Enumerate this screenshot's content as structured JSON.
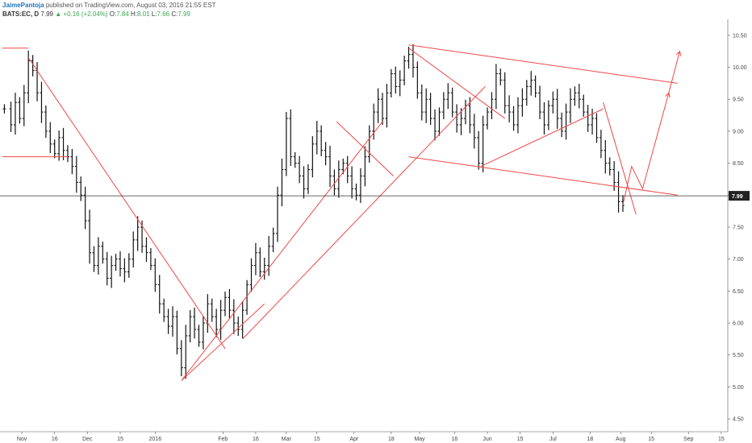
{
  "header": {
    "author": "JaimePantoja",
    "published": "published on TradingView.com, August 03, 2016 21:55 EST",
    "symbol": "BATS:EC, D",
    "last": "7.99",
    "change_arrow": "▲",
    "change": "+0.16 (+2.04%)",
    "open_label": "O:",
    "open": "7.84",
    "high_label": "H:",
    "high": "8.01",
    "low_label": "L:",
    "low": "7.66",
    "close_label": "C:",
    "close": "7.99"
  },
  "chart_data": {
    "type": "ohlc",
    "price_ticks": [
      "10.50",
      "10.00",
      "9.50",
      "9.00",
      "8.50",
      "8.00",
      "7.50",
      "7.00",
      "6.50",
      "6.00",
      "5.50",
      "5.00",
      "4.50"
    ],
    "price_tick_values": [
      10.5,
      10.0,
      9.5,
      9.0,
      8.5,
      8.0,
      7.5,
      7.0,
      6.5,
      6.0,
      5.5,
      5.0,
      4.5
    ],
    "ylim": [
      4.3,
      10.75
    ],
    "time_labels": [
      "Nov",
      "16",
      "Dec",
      "15",
      "2016",
      "Feb",
      "16",
      "Mar",
      "15",
      "Apr",
      "18",
      "May",
      "16",
      "Jun",
      "15",
      "Jul",
      "18",
      "Aug",
      "15",
      "Sep",
      "15"
    ],
    "time_label_days": [
      0,
      15,
      30,
      45,
      61,
      92,
      107,
      121,
      135,
      152,
      169,
      182,
      198,
      213,
      228,
      243,
      260,
      274,
      288,
      305,
      320
    ],
    "xlim": [
      -10,
      323
    ],
    "last_price_label": "7.99",
    "last_price": 7.99,
    "closes": [
      {
        "d": -8,
        "c": 9.35
      },
      {
        "d": -5,
        "c": 9.1
      },
      {
        "d": -3,
        "c": 9.45
      },
      {
        "d": -1,
        "c": 9.2
      },
      {
        "d": 1,
        "c": 9.6
      },
      {
        "d": 3,
        "c": 10.1
      },
      {
        "d": 5,
        "c": 9.95
      },
      {
        "d": 7,
        "c": 9.6
      },
      {
        "d": 9,
        "c": 9.3
      },
      {
        "d": 11,
        "c": 9.0
      },
      {
        "d": 13,
        "c": 8.8
      },
      {
        "d": 15,
        "c": 8.65
      },
      {
        "d": 17,
        "c": 8.9
      },
      {
        "d": 19,
        "c": 8.7
      },
      {
        "d": 21,
        "c": 8.6
      },
      {
        "d": 23,
        "c": 8.45
      },
      {
        "d": 25,
        "c": 8.2
      },
      {
        "d": 27,
        "c": 8.0
      },
      {
        "d": 29,
        "c": 7.6
      },
      {
        "d": 31,
        "c": 7.1
      },
      {
        "d": 33,
        "c": 6.9
      },
      {
        "d": 35,
        "c": 7.2
      },
      {
        "d": 37,
        "c": 7.0
      },
      {
        "d": 39,
        "c": 6.7
      },
      {
        "d": 41,
        "c": 6.9
      },
      {
        "d": 43,
        "c": 7.0
      },
      {
        "d": 45,
        "c": 6.85
      },
      {
        "d": 47,
        "c": 6.8
      },
      {
        "d": 49,
        "c": 7.0
      },
      {
        "d": 51,
        "c": 7.3
      },
      {
        "d": 53,
        "c": 7.5
      },
      {
        "d": 55,
        "c": 7.2
      },
      {
        "d": 57,
        "c": 7.1
      },
      {
        "d": 59,
        "c": 6.9
      },
      {
        "d": 61,
        "c": 6.6
      },
      {
        "d": 63,
        "c": 6.3
      },
      {
        "d": 65,
        "c": 6.1
      },
      {
        "d": 67,
        "c": 5.95
      },
      {
        "d": 69,
        "c": 6.1
      },
      {
        "d": 71,
        "c": 5.6
      },
      {
        "d": 73,
        "c": 5.3
      },
      {
        "d": 75,
        "c": 5.8
      },
      {
        "d": 77,
        "c": 6.1
      },
      {
        "d": 79,
        "c": 5.9
      },
      {
        "d": 81,
        "c": 5.7
      },
      {
        "d": 83,
        "c": 6.0
      },
      {
        "d": 85,
        "c": 6.3
      },
      {
        "d": 87,
        "c": 6.1
      },
      {
        "d": 89,
        "c": 5.9
      },
      {
        "d": 91,
        "c": 6.2
      },
      {
        "d": 93,
        "c": 6.4
      },
      {
        "d": 95,
        "c": 6.2
      },
      {
        "d": 97,
        "c": 6.0
      },
      {
        "d": 99,
        "c": 5.9
      },
      {
        "d": 101,
        "c": 6.2
      },
      {
        "d": 103,
        "c": 6.6
      },
      {
        "d": 105,
        "c": 6.9
      },
      {
        "d": 107,
        "c": 7.1
      },
      {
        "d": 109,
        "c": 6.8
      },
      {
        "d": 111,
        "c": 6.9
      },
      {
        "d": 113,
        "c": 7.2
      },
      {
        "d": 115,
        "c": 7.4
      },
      {
        "d": 117,
        "c": 8.0
      },
      {
        "d": 119,
        "c": 8.4
      },
      {
        "d": 121,
        "c": 9.2
      },
      {
        "d": 123,
        "c": 8.6
      },
      {
        "d": 125,
        "c": 8.5
      },
      {
        "d": 127,
        "c": 8.3
      },
      {
        "d": 129,
        "c": 8.1
      },
      {
        "d": 131,
        "c": 8.4
      },
      {
        "d": 133,
        "c": 8.8
      },
      {
        "d": 135,
        "c": 9.0
      },
      {
        "d": 137,
        "c": 8.7
      },
      {
        "d": 139,
        "c": 8.6
      },
      {
        "d": 141,
        "c": 8.3
      },
      {
        "d": 143,
        "c": 8.1
      },
      {
        "d": 145,
        "c": 8.4
      },
      {
        "d": 147,
        "c": 8.5
      },
      {
        "d": 149,
        "c": 8.3
      },
      {
        "d": 151,
        "c": 8.1
      },
      {
        "d": 153,
        "c": 8.0
      },
      {
        "d": 155,
        "c": 8.3
      },
      {
        "d": 157,
        "c": 8.6
      },
      {
        "d": 159,
        "c": 9.0
      },
      {
        "d": 161,
        "c": 9.3
      },
      {
        "d": 163,
        "c": 9.5
      },
      {
        "d": 165,
        "c": 9.2
      },
      {
        "d": 167,
        "c": 9.6
      },
      {
        "d": 169,
        "c": 9.9
      },
      {
        "d": 171,
        "c": 9.7
      },
      {
        "d": 173,
        "c": 9.8
      },
      {
        "d": 175,
        "c": 10.1
      },
      {
        "d": 177,
        "c": 10.2
      },
      {
        "d": 179,
        "c": 10.0
      },
      {
        "d": 181,
        "c": 9.6
      },
      {
        "d": 183,
        "c": 9.3
      },
      {
        "d": 185,
        "c": 9.5
      },
      {
        "d": 187,
        "c": 9.2
      },
      {
        "d": 189,
        "c": 9.0
      },
      {
        "d": 191,
        "c": 9.3
      },
      {
        "d": 193,
        "c": 9.5
      },
      {
        "d": 195,
        "c": 9.6
      },
      {
        "d": 197,
        "c": 9.3
      },
      {
        "d": 199,
        "c": 9.1
      },
      {
        "d": 201,
        "c": 9.2
      },
      {
        "d": 203,
        "c": 9.4
      },
      {
        "d": 205,
        "c": 9.1
      },
      {
        "d": 207,
        "c": 8.9
      },
      {
        "d": 209,
        "c": 8.5
      },
      {
        "d": 211,
        "c": 9.1
      },
      {
        "d": 213,
        "c": 9.3
      },
      {
        "d": 215,
        "c": 9.5
      },
      {
        "d": 217,
        "c": 9.9
      },
      {
        "d": 219,
        "c": 9.8
      },
      {
        "d": 221,
        "c": 9.4
      },
      {
        "d": 223,
        "c": 9.3
      },
      {
        "d": 225,
        "c": 9.1
      },
      {
        "d": 227,
        "c": 9.4
      },
      {
        "d": 229,
        "c": 9.5
      },
      {
        "d": 231,
        "c": 9.7
      },
      {
        "d": 233,
        "c": 9.8
      },
      {
        "d": 235,
        "c": 9.6
      },
      {
        "d": 237,
        "c": 9.3
      },
      {
        "d": 239,
        "c": 9.1
      },
      {
        "d": 241,
        "c": 9.4
      },
      {
        "d": 243,
        "c": 9.5
      },
      {
        "d": 245,
        "c": 9.2
      },
      {
        "d": 247,
        "c": 9.0
      },
      {
        "d": 249,
        "c": 9.3
      },
      {
        "d": 251,
        "c": 9.5
      },
      {
        "d": 253,
        "c": 9.6
      },
      {
        "d": 255,
        "c": 9.5
      },
      {
        "d": 257,
        "c": 9.3
      },
      {
        "d": 259,
        "c": 9.1
      },
      {
        "d": 261,
        "c": 9.2
      },
      {
        "d": 263,
        "c": 8.9
      },
      {
        "d": 265,
        "c": 8.7
      },
      {
        "d": 267,
        "c": 8.5
      },
      {
        "d": 269,
        "c": 8.4
      },
      {
        "d": 271,
        "c": 8.2
      },
      {
        "d": 273,
        "c": 7.9
      },
      {
        "d": 275,
        "c": 7.84
      }
    ],
    "trend_lines": [
      {
        "d1": 3,
        "p1": 10.15,
        "d2": 93,
        "p2": 5.6
      },
      {
        "d1": 73,
        "p1": 5.1,
        "d2": 111,
        "p2": 6.3
      },
      {
        "d1": 73,
        "p1": 5.1,
        "d2": 165,
        "p2": 9.15
      },
      {
        "d1": 101,
        "p1": 5.75,
        "d2": 212,
        "p2": 9.7
      },
      {
        "d1": 144,
        "p1": 9.15,
        "d2": 170,
        "p2": 8.3
      },
      {
        "d1": 177,
        "p1": 10.35,
        "d2": 300,
        "p2": 9.75
      },
      {
        "d1": 177,
        "p1": 10.3,
        "d2": 221,
        "p2": 9.2
      },
      {
        "d1": 177,
        "p1": 8.6,
        "d2": 300,
        "p2": 8.0
      },
      {
        "d1": 210,
        "p1": 8.45,
        "d2": 266,
        "p2": 9.35
      },
      {
        "d1": 266,
        "p1": 9.45,
        "d2": 281,
        "p2": 7.7
      }
    ],
    "horizontal_lines": [
      {
        "d1": -9,
        "d2": 3,
        "p": 10.3
      },
      {
        "d1": -9,
        "d2": 21,
        "p": 8.6
      }
    ],
    "projections": [
      {
        "points": [
          [
            275,
            7.85
          ],
          [
            279,
            8.45
          ],
          [
            284,
            8.1
          ],
          [
            296,
            9.6
          ]
        ]
      },
      {
        "points": [
          [
            296,
            9.6
          ],
          [
            301,
            10.25
          ]
        ]
      }
    ],
    "colors": {
      "drawing": "#ef4747",
      "bars": "#111111",
      "axis": "#555555",
      "grid": "#dddddd"
    }
  }
}
